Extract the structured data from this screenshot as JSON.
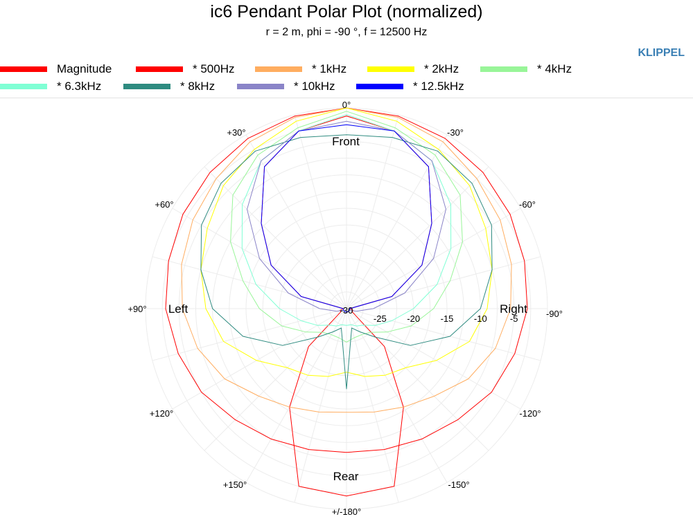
{
  "header": {
    "title": "ic6 Pendant Polar Plot (normalized)",
    "subtitle": "r = 2 m, phi = -90 °, f = 12500 Hz",
    "brand": "KLIPPEL"
  },
  "chart_data": {
    "type": "line",
    "coordinate_system": "polar",
    "title": "ic6 Pendant Polar Plot (normalized)",
    "subtitle": "r = 2 m, phi = -90 °, f = 12500 Hz",
    "r_range": [
      -30,
      0
    ],
    "r_ticks": [
      -30,
      -25,
      -20,
      -15,
      -10,
      -5
    ],
    "angle_ticks": [
      "0°",
      "-30°",
      "-60°",
      "-90°",
      "-120°",
      "-150°",
      "+/-180°",
      "+150°",
      "+120°",
      "+90°",
      "+60°",
      "+30°"
    ],
    "region_labels": [
      "Front",
      "Right",
      "Rear",
      "Left"
    ],
    "legend_position": "top",
    "grid": true,
    "angles_deg": [
      0,
      15,
      30,
      45,
      60,
      75,
      90,
      105,
      120,
      135,
      150,
      165,
      180,
      195,
      210,
      225,
      240,
      255,
      270,
      285,
      300,
      315,
      330,
      345
    ],
    "series": [
      {
        "name": "Magnitude",
        "color": "#ff0000",
        "values": [
          -1.2,
          -2.5,
          -5.5,
          -12,
          -17,
          -23,
          -29.5,
          -29,
          -29,
          -22,
          -13,
          -2.5,
          -2,
          -2.5,
          -13,
          -22,
          -29,
          -29,
          -29.5,
          -23,
          -17,
          -12,
          -5.5,
          -2.5
        ]
      },
      {
        "name": "* 500Hz",
        "color": "#ff0000",
        "values": [
          0,
          -0.2,
          -0.6,
          -1.2,
          -1.8,
          -2.5,
          -3,
          -4,
          -5,
          -6.5,
          -7.5,
          -8.2,
          -8.5,
          -8.2,
          -7.5,
          -6.5,
          -5,
          -4,
          -3,
          -2.5,
          -1.8,
          -1.2,
          -0.6,
          -0.2
        ]
      },
      {
        "name": "* 1kHz",
        "color": "#ffad60",
        "values": [
          0,
          -0.4,
          -1.2,
          -2.5,
          -3.5,
          -4.5,
          -5.5,
          -7,
          -9,
          -11.5,
          -13,
          -14,
          -14.5,
          -14,
          -13,
          -11.5,
          -9,
          -7,
          -5.5,
          -4.5,
          -3.5,
          -2.5,
          -1.2,
          -0.4
        ]
      },
      {
        "name": "* 2kHz",
        "color": "#ffff00",
        "values": [
          0,
          -1,
          -2.5,
          -4,
          -6,
          -7.5,
          -9,
          -11,
          -14.5,
          -17.5,
          -18.5,
          -19.5,
          -20.5,
          -19.5,
          -18.5,
          -17.5,
          -14.5,
          -11,
          -9,
          -7.5,
          -6,
          -4,
          -2.5,
          -1
        ]
      },
      {
        "name": "* 4kHz",
        "color": "#99f599",
        "values": [
          -0.5,
          -2,
          -3.5,
          -6,
          -10,
          -14,
          -17,
          -20,
          -23,
          -25,
          -25.5,
          -25.5,
          -25,
          -25.5,
          -25.5,
          -25,
          -23,
          -20,
          -17,
          -14,
          -10,
          -6,
          -3.5,
          -2
        ]
      },
      {
        "name": "* 6.3kHz",
        "color": "#7fffd4",
        "values": [
          -1,
          -2.5,
          -4.5,
          -8,
          -12,
          -16,
          -20,
          -23,
          -25,
          -26.5,
          -27,
          -27.5,
          -27.5,
          -27.5,
          -27,
          -26.5,
          -25,
          -23,
          -20,
          -16,
          -12,
          -8,
          -4.5,
          -2.5
        ]
      },
      {
        "name": "* 8kHz",
        "color": "#2e8b80",
        "values": [
          -4,
          -3.5,
          -2.8,
          -3.5,
          -5,
          -7.5,
          -10,
          -14,
          -19,
          -24,
          -26,
          -27,
          -18,
          -27,
          -26,
          -24,
          -19,
          -14,
          -10,
          -7.5,
          -5,
          -3.5,
          -2.8,
          -3.5
        ]
      },
      {
        "name": "* 10kHz",
        "color": "#8a84c8",
        "values": [
          -2,
          -2.5,
          -4.5,
          -9,
          -15,
          -21,
          -26,
          -28.5,
          -29.5,
          -29.5,
          -29.5,
          -29.5,
          -29.5,
          -29.5,
          -29.5,
          -29.5,
          -29.5,
          -28.5,
          -26,
          -21,
          -15,
          -9,
          -4.5,
          -2.5
        ]
      },
      {
        "name": "* 12.5kHz",
        "color": "#0000ff",
        "values": [
          -2.5,
          -2.5,
          -5.5,
          -12,
          -17,
          -23,
          -29.5,
          -29.5,
          -29.5,
          -29.5,
          -29.5,
          -29.5,
          -29.5,
          -29.5,
          -29.5,
          -29.5,
          -29.5,
          -29.5,
          -29.5,
          -23,
          -17,
          -12,
          -5.5,
          -2.5
        ]
      }
    ]
  }
}
